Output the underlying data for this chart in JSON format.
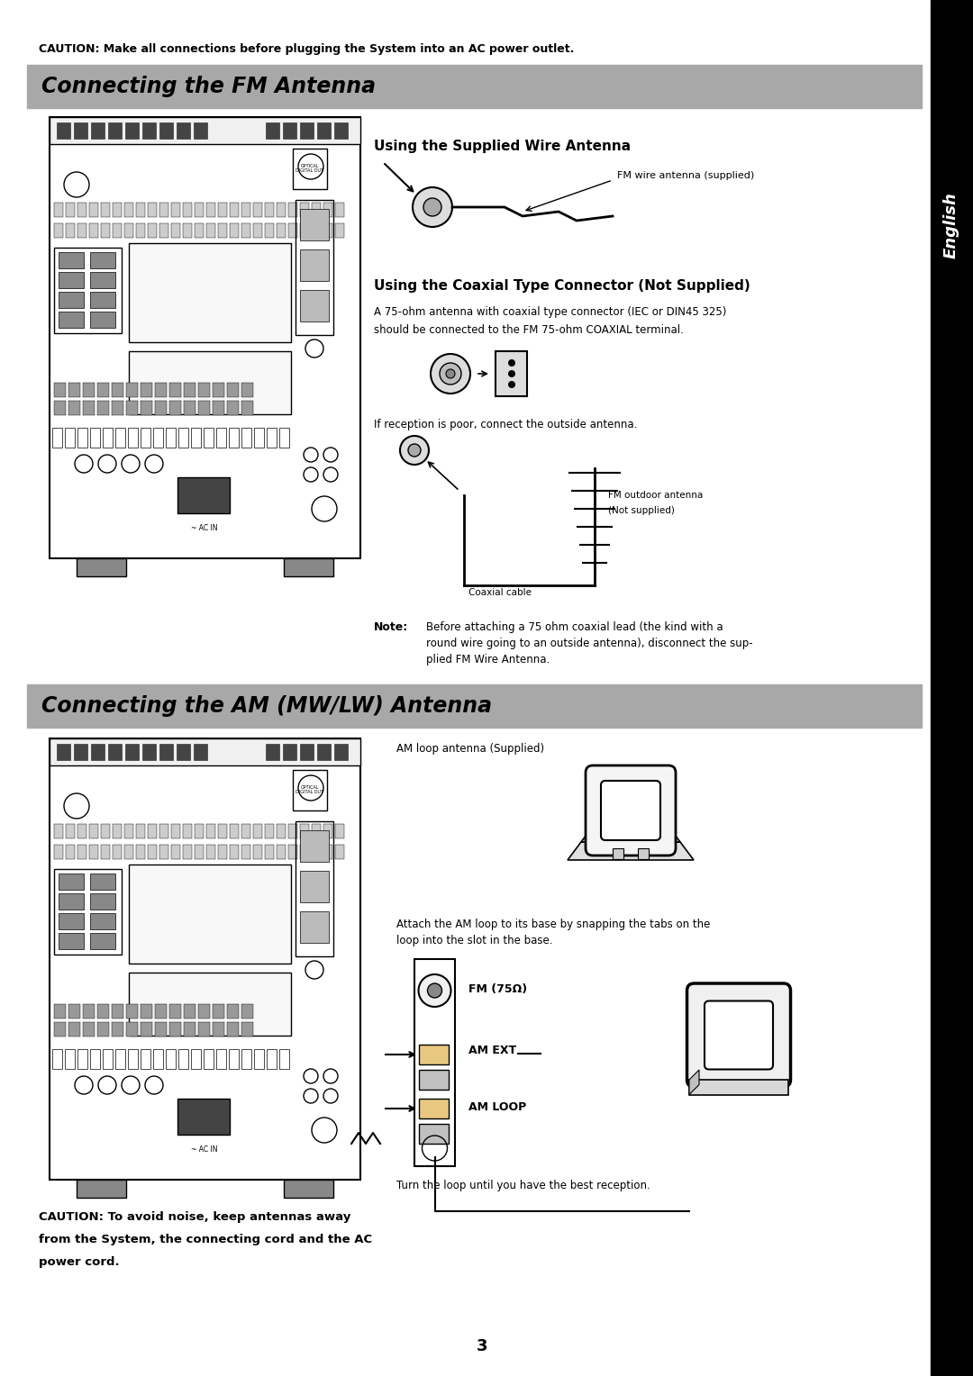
{
  "page_bg": "#ffffff",
  "sidebar_bg": "#000000",
  "sidebar_text": "English",
  "caution_top": "CAUTION: Make all connections before plugging the System into an AC power outlet.",
  "section1_title": "Connecting the FM Antenna",
  "section2_title": "Connecting the AM (MW/LW) Antenna",
  "subsection1_title": "Using the Supplied Wire Antenna",
  "subsection2_title": "Using the Coaxial Type Connector (Not Supplied)",
  "coaxial_text1": "A 75-ohm antenna with coaxial type connector (IEC or DIN45 325)",
  "coaxial_text2": "should be connected to the FM 75-ohm COAXIAL terminal.",
  "reception_text": "If reception is poor, connect the outside antenna.",
  "note_label": "Note:",
  "note_text1": "Before attaching a 75 ohm coaxial lead (the kind with a",
  "note_text2": "round wire going to an outside antenna), disconnect the sup-",
  "note_text3": "plied FM Wire Antenna.",
  "fm_wire_label": "FM wire antenna (supplied)",
  "fm_outdoor_label1": "FM outdoor antenna",
  "fm_outdoor_label2": "(Not supplied)",
  "coaxial_cable_label": "Coaxial cable",
  "am_loop_label": "AM loop antenna (Supplied)",
  "am_attach_text1": "Attach the AM loop to its base by snapping the tabs on the",
  "am_attach_text2": "loop into the slot in the base.",
  "fm_75_label": "FM (75Ω)",
  "am_ext_label": "AM EXT",
  "am_loop_term_label": "AM LOOP",
  "turn_loop_text": "Turn the loop until you have the best reception.",
  "caution_bottom1": "CAUTION: To avoid noise, keep antennas away",
  "caution_bottom2": "from the System, the connecting cord and the AC",
  "caution_bottom3": "power cord.",
  "page_number": "3",
  "banner_color": "#a8a8a8",
  "banner_text_color": "#000000"
}
